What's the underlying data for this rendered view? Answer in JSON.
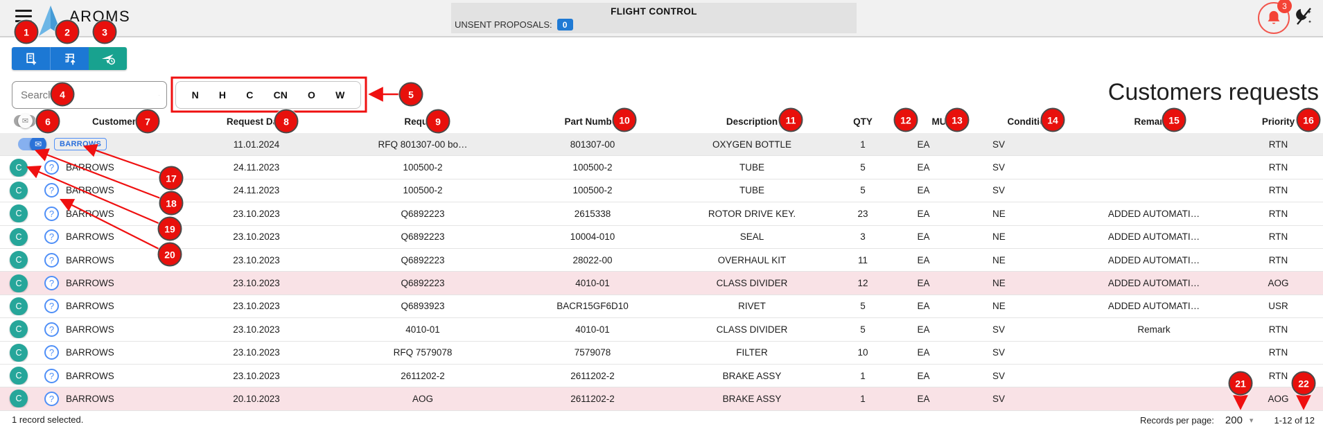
{
  "app": {
    "title": "AROMS",
    "flight_control": "FLIGHT CONTROL",
    "unsent_label": "UNSENT PROPOSALS:",
    "unsent_count": "0",
    "notifications_count": "3"
  },
  "page_title": "Customers requests",
  "toolbar": {
    "buttons": [
      {
        "name": "add-request",
        "icon": "document-plus",
        "style": "blue"
      },
      {
        "name": "import-table",
        "icon": "table-arrow-up",
        "style": "blue"
      },
      {
        "name": "send-history",
        "icon": "send-clock",
        "style": "teal"
      }
    ]
  },
  "icons": {
    "menu": "hamburger",
    "logo": "blue-arrow-triangle",
    "search": "magnifier",
    "notifications": "bell",
    "theme": "moon-slash",
    "email_toggle": "envelope",
    "help": "question-mark",
    "dropdown": "caret-down"
  },
  "search": {
    "placeholder": "Search"
  },
  "filters": {
    "letters": [
      "N",
      "H",
      "C",
      "CN",
      "O",
      "W"
    ]
  },
  "table": {
    "columns": [
      "Customer",
      "Request Date",
      "Request",
      "Part Number",
      "Description",
      "QTY",
      "MU",
      "Condition",
      "Remarks",
      "Priority"
    ],
    "rows": [
      {
        "selected": true,
        "highlight": false,
        "status_letter": "",
        "customer": "BARROWS",
        "request_date": "11.01.2024",
        "request": "RFQ 801307-00 bo…",
        "part_number": "801307-00",
        "description": "OXYGEN BOTTLE",
        "qty": "1",
        "mu": "EA",
        "condition": "SV",
        "remarks": "",
        "priority": "RTN"
      },
      {
        "selected": false,
        "highlight": false,
        "status_letter": "C",
        "customer": "BARROWS",
        "request_date": "24.11.2023",
        "request": "100500-2",
        "part_number": "100500-2",
        "description": "TUBE",
        "qty": "5",
        "mu": "EA",
        "condition": "SV",
        "remarks": "",
        "priority": "RTN"
      },
      {
        "selected": false,
        "highlight": false,
        "status_letter": "C",
        "customer": "BARROWS",
        "request_date": "24.11.2023",
        "request": "100500-2",
        "part_number": "100500-2",
        "description": "TUBE",
        "qty": "5",
        "mu": "EA",
        "condition": "SV",
        "remarks": "",
        "priority": "RTN"
      },
      {
        "selected": false,
        "highlight": false,
        "status_letter": "C",
        "customer": "BARROWS",
        "request_date": "23.10.2023",
        "request": "Q6892223",
        "part_number": "2615338",
        "description": "ROTOR DRIVE KEY.",
        "qty": "23",
        "mu": "EA",
        "condition": "NE",
        "remarks": "ADDED AUTOMATI…",
        "priority": "RTN"
      },
      {
        "selected": false,
        "highlight": false,
        "status_letter": "C",
        "customer": "BARROWS",
        "request_date": "23.10.2023",
        "request": "Q6892223",
        "part_number": "10004-010",
        "description": "SEAL",
        "qty": "3",
        "mu": "EA",
        "condition": "NE",
        "remarks": "ADDED AUTOMATI…",
        "priority": "RTN"
      },
      {
        "selected": false,
        "highlight": false,
        "status_letter": "C",
        "customer": "BARROWS",
        "request_date": "23.10.2023",
        "request": "Q6892223",
        "part_number": "28022-00",
        "description": "OVERHAUL KIT",
        "qty": "11",
        "mu": "EA",
        "condition": "NE",
        "remarks": "ADDED AUTOMATI…",
        "priority": "RTN"
      },
      {
        "selected": false,
        "highlight": true,
        "status_letter": "C",
        "customer": "BARROWS",
        "request_date": "23.10.2023",
        "request": "Q6892223",
        "part_number": "4010-01",
        "description": "CLASS DIVIDER",
        "qty": "12",
        "mu": "EA",
        "condition": "NE",
        "remarks": "ADDED AUTOMATI…",
        "priority": "AOG"
      },
      {
        "selected": false,
        "highlight": false,
        "status_letter": "C",
        "customer": "BARROWS",
        "request_date": "23.10.2023",
        "request": "Q6893923",
        "part_number": "BACR15GF6D10",
        "description": "RIVET",
        "qty": "5",
        "mu": "EA",
        "condition": "NE",
        "remarks": "ADDED AUTOMATI…",
        "priority": "USR"
      },
      {
        "selected": false,
        "highlight": false,
        "status_letter": "C",
        "customer": "BARROWS",
        "request_date": "23.10.2023",
        "request": "4010-01",
        "part_number": "4010-01",
        "description": "CLASS DIVIDER",
        "qty": "5",
        "mu": "EA",
        "condition": "SV",
        "remarks": "Remark",
        "priority": "RTN"
      },
      {
        "selected": false,
        "highlight": false,
        "status_letter": "C",
        "customer": "BARROWS",
        "request_date": "23.10.2023",
        "request": "RFQ 7579078",
        "part_number": "7579078",
        "description": "FILTER",
        "qty": "10",
        "mu": "EA",
        "condition": "SV",
        "remarks": "",
        "priority": "RTN"
      },
      {
        "selected": false,
        "highlight": false,
        "status_letter": "C",
        "customer": "BARROWS",
        "request_date": "23.10.2023",
        "request": "2611202-2",
        "part_number": "2611202-2",
        "description": "BRAKE ASSY",
        "qty": "1",
        "mu": "EA",
        "condition": "SV",
        "remarks": "",
        "priority": "RTN"
      },
      {
        "selected": false,
        "highlight": true,
        "status_letter": "C",
        "customer": "BARROWS",
        "request_date": "20.10.2023",
        "request": "AOG",
        "part_number": "2611202-2",
        "description": "BRAKE ASSY",
        "qty": "1",
        "mu": "EA",
        "condition": "SV",
        "remarks": "",
        "priority": "AOG"
      }
    ]
  },
  "footer": {
    "selected_text": "1 record selected.",
    "records_per_page_label": "Records per page:",
    "records_per_page_value": "200",
    "range_text": "1-12 of 12"
  },
  "annotations": {
    "numbers": [
      "1",
      "2",
      "3",
      "4",
      "5",
      "6",
      "7",
      "8",
      "9",
      "10",
      "11",
      "12",
      "13",
      "14",
      "15",
      "16",
      "17",
      "18",
      "19",
      "20",
      "21",
      "22"
    ]
  },
  "colors": {
    "accent_blue": "#1c78d4",
    "teal": "#18a28f",
    "status_teal": "#26a69a",
    "alert_red": "#f44336",
    "annotation_red": "#e8100c",
    "row_highlight_pink": "#f9e2e6",
    "row_selected_gray": "#ededed"
  }
}
